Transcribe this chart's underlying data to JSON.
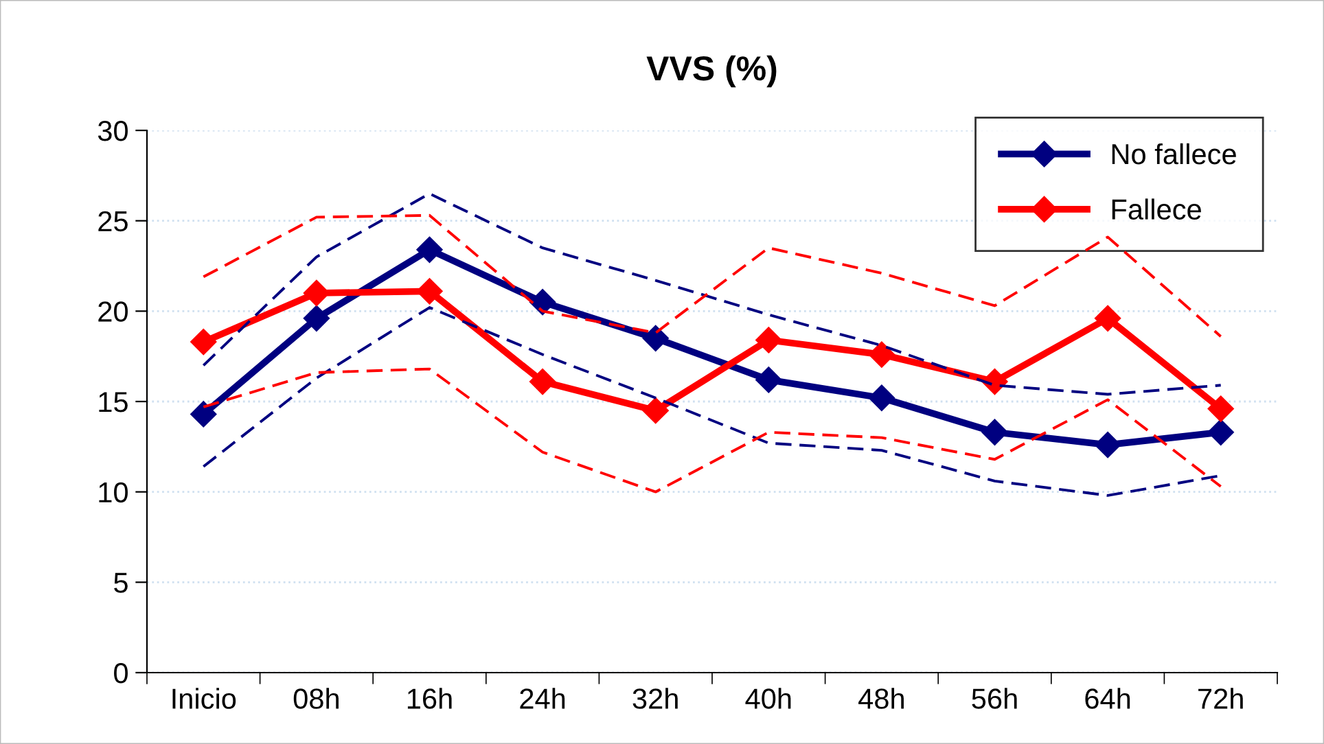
{
  "chart_data": {
    "type": "line",
    "title": "VVS (%)",
    "categories": [
      "Inicio",
      "08h",
      "16h",
      "24h",
      "32h",
      "40h",
      "48h",
      "56h",
      "64h",
      "72h"
    ],
    "series": [
      {
        "color": "#000080",
        "line_style": "dashed",
        "marker": "none",
        "values": [
          11.4,
          16.3,
          20.2,
          17.6,
          15.2,
          12.7,
          12.3,
          10.6,
          9.8,
          10.9
        ]
      },
      {
        "color": "#000080",
        "line_style": "dashed",
        "marker": "none",
        "values": [
          17.0,
          23.0,
          26.5,
          23.5,
          21.7,
          19.8,
          18.1,
          15.9,
          15.4,
          15.9
        ]
      },
      {
        "color": "#ff0000",
        "line_style": "dashed",
        "marker": "none",
        "values": [
          14.7,
          16.6,
          16.8,
          12.2,
          10.0,
          13.3,
          13.0,
          11.8,
          15.1,
          10.3
        ]
      },
      {
        "color": "#ff0000",
        "line_style": "dashed",
        "marker": "none",
        "values": [
          21.9,
          25.2,
          25.3,
          20.0,
          18.8,
          23.5,
          22.1,
          20.3,
          24.1,
          18.6
        ]
      },
      {
        "name": "No fallece",
        "color": "#000080",
        "values": [
          14.3,
          19.6,
          23.4,
          20.5,
          18.5,
          16.2,
          15.2,
          13.3,
          12.6,
          13.3
        ]
      },
      {
        "name": "Fallece",
        "color": "#ff0000",
        "values": [
          18.3,
          21.0,
          21.1,
          16.1,
          14.5,
          18.4,
          17.6,
          16.1,
          19.6,
          14.6
        ]
      }
    ],
    "ylim": [
      0,
      30
    ],
    "yticks": [
      0,
      5,
      10,
      15,
      20,
      25,
      30
    ],
    "grid": "y",
    "legend": "top right",
    "marker": "diamond",
    "line_style": "solid"
  }
}
